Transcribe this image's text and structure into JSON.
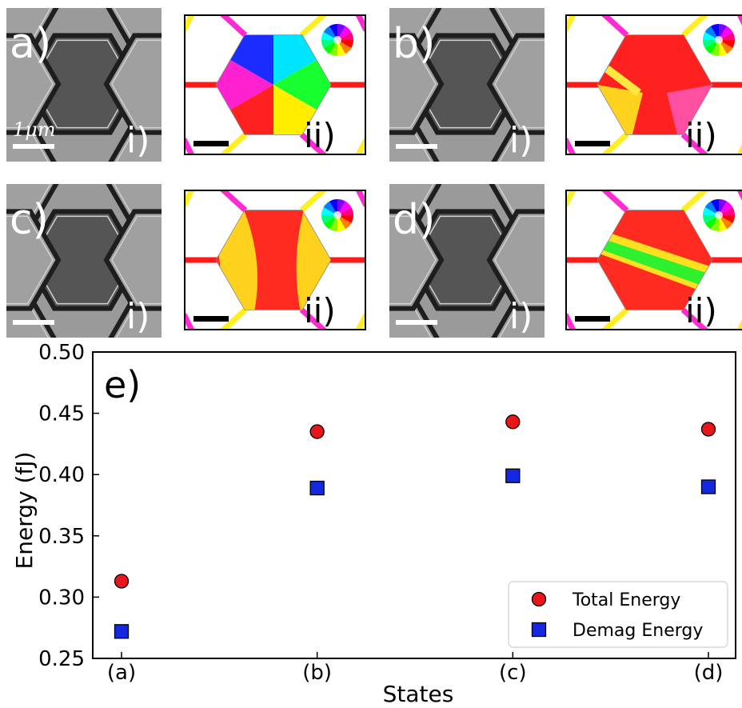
{
  "panels": [
    {
      "letter": "a)",
      "micro_tag": "i)",
      "sim_tag": "ii)",
      "scale_label": "1μm",
      "sim_pattern": "vortex"
    },
    {
      "letter": "b)",
      "micro_tag": "i)",
      "sim_tag": "ii)",
      "scale_label": "",
      "sim_pattern": "three-domain"
    },
    {
      "letter": "c)",
      "micro_tag": "i)",
      "sim_tag": "ii)",
      "scale_label": "",
      "sim_pattern": "double-stripe"
    },
    {
      "letter": "d)",
      "micro_tag": "i)",
      "sim_tag": "ii)",
      "scale_label": "",
      "sim_pattern": "diagonal-band"
    }
  ],
  "lattice_colors": {
    "horizontal": "#ff1a1a",
    "left_diagonal": "#ff2ad4",
    "right_diagonal": "#ffee22"
  },
  "chart_data": {
    "type": "scatter",
    "panel_label": "e)",
    "xlabel": "States",
    "ylabel": "Energy (fJ)",
    "categories": [
      "(a)",
      "(b)",
      "(c)",
      "(d)"
    ],
    "ylim": [
      0.25,
      0.5
    ],
    "yticks": [
      "0.25",
      "0.30",
      "0.35",
      "0.40",
      "0.45",
      "0.50"
    ],
    "legend_position": "lower-right",
    "series": [
      {
        "name": "Total Energy",
        "marker": "circle",
        "color": "#e8161b",
        "values": [
          0.313,
          0.435,
          0.443,
          0.437
        ]
      },
      {
        "name": "Demag Energy",
        "marker": "square",
        "color": "#1428e0",
        "values": [
          0.272,
          0.389,
          0.399,
          0.39
        ]
      }
    ]
  }
}
